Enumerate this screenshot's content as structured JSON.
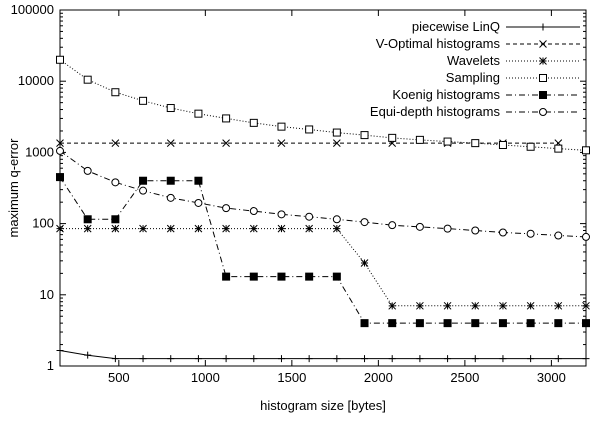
{
  "chart_data": {
    "type": "line",
    "title": "",
    "xlabel": "histogram size [bytes]",
    "ylabel": "maximum q-error",
    "xlim": [
      160,
      3200
    ],
    "ylim": [
      1,
      100000
    ],
    "yscale": "log",
    "grid": false,
    "legend_position": "top-right",
    "x_ticks": [
      500,
      1000,
      1500,
      2000,
      2500,
      3000
    ],
    "x_tick_labels": [
      "500",
      "1000",
      "1500",
      "2000",
      "2500",
      "3000"
    ],
    "y_ticks": [
      1,
      10,
      100,
      1000,
      10000,
      100000
    ],
    "y_tick_labels": [
      "1",
      "10",
      "100",
      "1000",
      "10000",
      "100000"
    ],
    "series": [
      {
        "name": "piecewise LinQ",
        "marker": "plus",
        "dash": "",
        "x": [
          160,
          320,
          480,
          640,
          800,
          960,
          1120,
          1280,
          1440,
          1600,
          1760,
          1920,
          2080,
          2240,
          2400,
          2560,
          2720,
          2880,
          3040,
          3200
        ],
        "y": [
          1.65,
          1.42,
          1.27,
          1.27,
          1.27,
          1.27,
          1.27,
          1.27,
          1.27,
          1.27,
          1.27,
          1.27,
          1.27,
          1.27,
          1.27,
          1.27,
          1.27,
          1.27,
          1.27,
          1.27
        ]
      },
      {
        "name": "V-Optimal histograms",
        "marker": "x",
        "dash": "4,3",
        "x": [
          160,
          480,
          800,
          1120,
          1440,
          1760,
          2080,
          2400,
          2720,
          3040
        ],
        "y": [
          1350,
          1350,
          1350,
          1350,
          1350,
          1350,
          1350,
          1350,
          1350,
          1350
        ]
      },
      {
        "name": "Wavelets",
        "marker": "star",
        "dash": "1,2",
        "x": [
          160,
          320,
          480,
          640,
          800,
          960,
          1120,
          1280,
          1440,
          1600,
          1760,
          1920,
          2080,
          2240,
          2400,
          2560,
          2720,
          2880,
          3040,
          3200
        ],
        "y": [
          85,
          85,
          85,
          85,
          85,
          85,
          85,
          85,
          85,
          85,
          85,
          28,
          7,
          7,
          7,
          7,
          7,
          7,
          7,
          7
        ]
      },
      {
        "name": "Sampling",
        "marker": "open-square",
        "dash": "1,2",
        "x": [
          160,
          320,
          480,
          640,
          800,
          960,
          1120,
          1280,
          1440,
          1600,
          1760,
          1920,
          2080,
          2240,
          2400,
          2560,
          2720,
          2880,
          3040,
          3200
        ],
        "y": [
          20000,
          10500,
          7000,
          5300,
          4200,
          3500,
          3000,
          2600,
          2300,
          2100,
          1900,
          1750,
          1600,
          1500,
          1420,
          1350,
          1270,
          1200,
          1130,
          1070
        ]
      },
      {
        "name": "Koenig histograms",
        "marker": "filled-square",
        "dash": "6,3,1,3",
        "x": [
          160,
          320,
          480,
          640,
          800,
          960,
          1120,
          1280,
          1440,
          1600,
          1760,
          1920,
          2080,
          2240,
          2400,
          2560,
          2720,
          2880,
          3040,
          3200
        ],
        "y": [
          450,
          115,
          115,
          400,
          400,
          400,
          18,
          18,
          18,
          18,
          18,
          4,
          4,
          4,
          4,
          4,
          4,
          4,
          4,
          4
        ]
      },
      {
        "name": "Equi-depth histograms",
        "marker": "open-circle",
        "dash": "6,3,1,3",
        "x": [
          160,
          320,
          480,
          640,
          800,
          960,
          1120,
          1280,
          1440,
          1600,
          1760,
          1920,
          2080,
          2240,
          2400,
          2560,
          2720,
          2880,
          3040,
          3200
        ],
        "y": [
          1050,
          550,
          380,
          290,
          230,
          195,
          165,
          150,
          135,
          125,
          115,
          105,
          95,
          90,
          85,
          80,
          75,
          72,
          68,
          65
        ]
      }
    ]
  }
}
